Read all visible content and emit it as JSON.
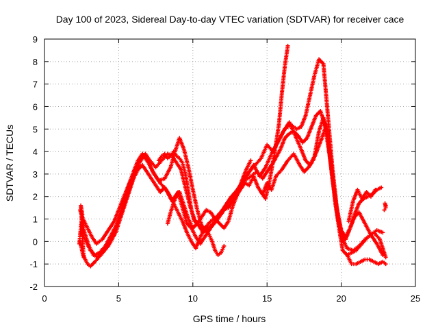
{
  "chart_data": {
    "type": "scatter",
    "title": "Day 100 of 2023, Sidereal Day-to-day VTEC variation (SDTVAR) for receiver cace",
    "xlabel": "GPS time / hours",
    "ylabel": "SDTVAR / TECUs",
    "xlim": [
      0,
      25
    ],
    "ylim": [
      -2,
      9
    ],
    "xticks": [
      "0",
      "5",
      "10",
      "15",
      "20",
      "25"
    ],
    "yticks": [
      "-2",
      "-1",
      "0",
      "1",
      "2",
      "3",
      "4",
      "5",
      "6",
      "7",
      "8",
      "9"
    ],
    "grid": true,
    "marker": "plus",
    "color": "#ff0000",
    "series": [
      {
        "x": [
          2.4,
          2.6,
          2.9,
          3.1,
          3.4,
          3.8,
          4.3,
          4.8,
          5.1,
          5.4,
          5.7,
          6.0,
          6.3,
          6.6,
          6.9,
          7.2,
          7.5,
          7.8,
          8.1,
          8.4,
          8.7,
          9.0,
          9.3,
          9.6,
          9.9,
          10.2,
          10.5,
          10.8,
          11.2,
          11.6,
          12.0,
          12.4,
          12.8,
          13.2,
          13.5,
          13.8,
          14.1,
          14.4,
          14.7,
          15.0,
          15.3,
          15.6,
          16.0,
          16.4,
          16.8,
          17.2,
          17.5,
          17.8,
          18.1,
          18.4,
          18.7,
          19.0,
          19.3,
          19.6,
          19.9,
          20.1,
          20.4,
          20.7,
          21.0,
          21.4,
          21.8,
          22.2,
          22.6,
          23.0
        ],
        "y": [
          0.0,
          -0.6,
          -1.0,
          -1.1,
          -0.9,
          -0.6,
          -0.2,
          0.4,
          1.0,
          1.6,
          2.2,
          2.8,
          3.2,
          3.4,
          3.1,
          2.8,
          2.5,
          2.2,
          2.4,
          2.1,
          1.7,
          1.3,
          0.9,
          0.4,
          0.0,
          -0.3,
          0.2,
          0.6,
          0.9,
          1.1,
          1.4,
          1.5,
          1.9,
          2.3,
          2.6,
          2.5,
          2.9,
          2.4,
          2.1,
          2.6,
          2.3,
          2.9,
          3.2,
          3.6,
          3.9,
          3.4,
          3.1,
          3.3,
          3.6,
          4.1,
          4.6,
          5.2,
          3.6,
          1.7,
          0.4,
          -0.4,
          -0.6,
          -0.5,
          -0.4,
          -0.1,
          0.2,
          0.4,
          0.1,
          -0.7
        ]
      },
      {
        "x": [
          2.5,
          2.7,
          3.0,
          3.3,
          3.6,
          4.0,
          4.4,
          4.8,
          5.1,
          5.4,
          5.7,
          6.0,
          6.3,
          6.6,
          6.9,
          7.3,
          7.7,
          8.1,
          8.5,
          8.8,
          9.1,
          9.4,
          9.7,
          10.0,
          10.3,
          10.6,
          10.9,
          11.3,
          11.7,
          12.1,
          12.5,
          12.9,
          13.3,
          13.7,
          14.1,
          14.5,
          14.9,
          15.3,
          15.7,
          16.1,
          16.5,
          16.9,
          17.3,
          17.6,
          17.9,
          18.2,
          18.5,
          18.8,
          19.1,
          19.4,
          19.7,
          20.0,
          20.3,
          20.6,
          20.9,
          21.2,
          21.6,
          22.0,
          22.4,
          22.8
        ],
        "y": [
          0.9,
          0.4,
          -0.2,
          -0.6,
          -0.7,
          -0.4,
          0.0,
          0.6,
          1.2,
          1.8,
          2.5,
          3.1,
          3.6,
          3.9,
          3.7,
          3.1,
          2.7,
          2.8,
          3.3,
          4.0,
          4.6,
          4.1,
          3.3,
          2.3,
          1.4,
          0.7,
          0.5,
          0.7,
          1.0,
          1.5,
          1.9,
          2.2,
          2.6,
          3.0,
          3.4,
          2.9,
          3.3,
          3.9,
          4.4,
          4.9,
          5.3,
          4.7,
          4.1,
          3.6,
          3.4,
          3.8,
          4.9,
          5.5,
          4.6,
          2.8,
          1.3,
          0.3,
          0.1,
          0.6,
          1.1,
          1.3,
          0.8,
          0.3,
          -0.1,
          -0.6
        ]
      },
      {
        "x": [
          2.4,
          2.6,
          2.9,
          3.2,
          3.5,
          3.9,
          4.3,
          4.7,
          5.0,
          5.3,
          5.6,
          5.9,
          6.2,
          6.5,
          6.8,
          7.1,
          7.5,
          7.9,
          8.3,
          8.6,
          8.9,
          9.2,
          9.5,
          9.8,
          10.1,
          10.4,
          10.7,
          11.0,
          11.4,
          11.8,
          12.2,
          12.6,
          13.0,
          13.4,
          13.8,
          14.2,
          14.6,
          15.0,
          15.4,
          15.8,
          16.2,
          16.6,
          17.0,
          17.3,
          17.6,
          17.9,
          18.2,
          18.5,
          18.8,
          19.1,
          19.4,
          19.7,
          20.0,
          20.3,
          20.6,
          20.9,
          21.2,
          21.5,
          21.8,
          22.1,
          22.4,
          22.7
        ],
        "y": [
          1.4,
          1.0,
          0.6,
          0.2,
          -0.1,
          0.1,
          0.5,
          0.9,
          1.4,
          1.9,
          2.4,
          2.9,
          3.3,
          3.7,
          3.9,
          3.6,
          3.3,
          3.6,
          3.9,
          3.8,
          3.5,
          3.2,
          2.4,
          1.6,
          1.0,
          0.7,
          0.4,
          0.6,
          0.8,
          1.2,
          1.6,
          2.0,
          2.3,
          2.7,
          3.1,
          3.4,
          3.7,
          4.3,
          4.0,
          4.5,
          5.0,
          5.2,
          5.0,
          5.1,
          5.6,
          6.5,
          7.4,
          8.1,
          7.9,
          5.6,
          3.3,
          1.5,
          0.5,
          0.2,
          0.6,
          1.2,
          1.7,
          1.9,
          2.0,
          2.1,
          2.3,
          2.4
        ]
      },
      {
        "x": [
          2.5,
          2.8,
          3.1,
          3.4,
          3.7,
          4.1,
          4.5,
          4.9,
          5.2,
          5.5,
          5.8,
          6.1,
          6.4,
          6.7,
          7.0,
          7.4,
          7.8,
          8.2,
          8.6,
          9.0,
          9.3,
          9.6,
          9.9,
          10.2,
          10.5,
          10.8,
          11.1,
          11.5,
          11.9,
          12.3,
          12.7,
          13.1,
          13.5,
          13.9,
          14.3,
          14.7,
          15.1,
          15.5,
          15.9,
          16.2,
          16.5,
          16.8,
          17.1,
          17.4,
          17.7,
          18.0,
          18.3,
          18.6,
          18.9,
          19.2,
          19.5,
          19.8,
          20.1,
          20.4,
          20.8,
          21.2,
          21.6,
          22.0,
          22.4,
          22.8
        ],
        "y": [
          0.4,
          0.0,
          -0.4,
          -0.6,
          -0.5,
          -0.2,
          0.3,
          0.8,
          1.3,
          1.9,
          2.5,
          3.0,
          3.5,
          3.8,
          3.5,
          3.0,
          2.6,
          2.3,
          1.8,
          2.2,
          1.5,
          0.8,
          0.6,
          0.2,
          -0.1,
          0.2,
          0.5,
          0.9,
          1.2,
          1.6,
          1.9,
          2.3,
          2.7,
          2.9,
          3.1,
          2.8,
          3.2,
          3.6,
          4.1,
          4.6,
          4.8,
          4.9,
          4.7,
          4.4,
          4.6,
          5.1,
          5.6,
          5.8,
          5.2,
          3.9,
          2.4,
          1.0,
          0.1,
          -0.3,
          -0.4,
          -0.2,
          0.1,
          0.3,
          0.5,
          0.4
        ]
      },
      {
        "x": [
          7.7,
          7.9,
          8.1,
          8.3,
          8.5,
          8.7,
          8.9,
          9.1,
          9.3,
          9.5,
          9.7,
          9.9,
          10.1,
          10.3,
          10.5,
          10.7,
          10.9,
          11.1,
          11.3,
          11.5,
          11.7,
          11.9,
          12.1
        ],
        "y": [
          3.6,
          3.8,
          3.9,
          3.7,
          3.8,
          4.0,
          3.8,
          3.7,
          3.5,
          3.0,
          2.2,
          1.4,
          0.9,
          0.8,
          0.7,
          0.6,
          0.5,
          0.3,
          0.0,
          -0.4,
          -0.6,
          -0.5,
          -0.2
        ]
      },
      {
        "x": [
          8.3,
          8.5,
          8.8,
          9.1,
          9.4,
          9.7,
          10.0,
          10.3,
          10.6,
          10.9,
          11.2,
          11.5,
          11.8,
          12.1,
          12.4,
          12.7,
          13.0,
          13.3,
          13.6,
          13.9
        ],
        "y": [
          0.8,
          1.3,
          1.9,
          2.2,
          1.6,
          1.0,
          0.6,
          0.8,
          1.1,
          1.4,
          1.3,
          1.0,
          0.8,
          0.6,
          0.9,
          1.6,
          2.1,
          2.7,
          3.2,
          3.6
        ]
      },
      {
        "x": [
          14.6,
          14.9,
          15.2,
          15.5,
          15.8,
          16.0,
          16.2,
          16.4
        ],
        "y": [
          2.2,
          1.9,
          2.8,
          3.9,
          5.2,
          6.6,
          7.8,
          8.7
        ]
      },
      {
        "x": [
          20.4,
          20.7,
          21.0,
          21.3,
          21.6,
          21.9,
          22.2,
          22.5,
          22.8,
          23.0
        ],
        "y": [
          -0.6,
          -1.0,
          -1.0,
          -0.9,
          -0.8,
          -0.8,
          -0.9,
          -1.0,
          -0.9,
          -1.0
        ]
      },
      {
        "x": [
          20.5,
          20.8,
          21.1,
          21.4,
          21.7,
          22.0,
          22.3
        ],
        "y": [
          0.9,
          1.8,
          2.3,
          1.9,
          2.2,
          2.0,
          2.3
        ]
      },
      {
        "x": [
          22.9,
          23.0,
          22.95,
          23.0
        ],
        "y": [
          1.4,
          1.5,
          1.7,
          1.6
        ]
      },
      {
        "x": [
          2.35,
          2.4,
          2.45,
          2.5,
          2.55,
          2.5,
          2.45,
          2.55,
          2.6,
          2.65
        ],
        "y": [
          -0.1,
          0.3,
          0.6,
          0.9,
          1.2,
          1.4,
          1.6,
          0.5,
          -0.3,
          -0.7
        ]
      }
    ]
  }
}
